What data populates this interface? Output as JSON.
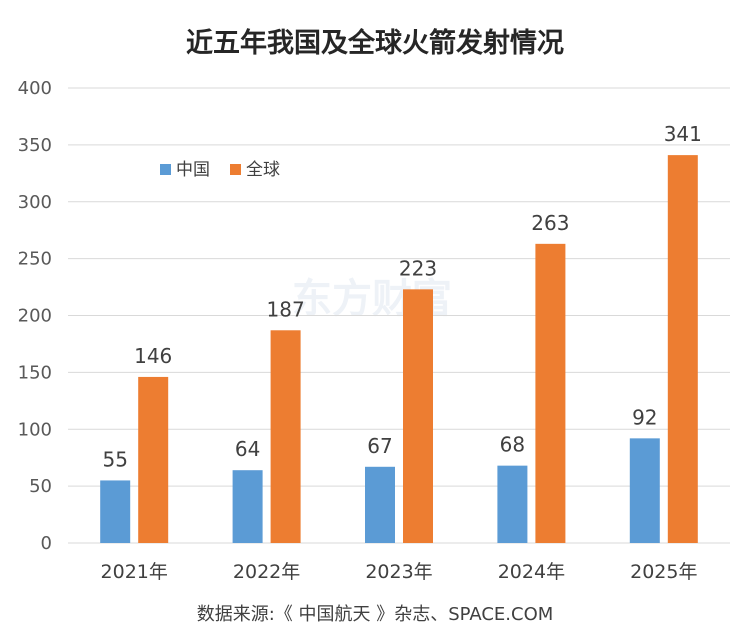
{
  "chart_data": {
    "type": "bar",
    "title": "近五年我国及全球火箭发射情况",
    "categories": [
      "2021年",
      "2022年",
      "2023年",
      "2024年",
      "2025年"
    ],
    "series": [
      {
        "name": "中国",
        "values": [
          55,
          64,
          67,
          68,
          92
        ],
        "color": "#5b9bd5"
      },
      {
        "name": "全球",
        "values": [
          146,
          187,
          223,
          263,
          341
        ],
        "color": "#ed7d31"
      }
    ],
    "ylim": [
      0,
      400
    ],
    "yticks": [
      0,
      50,
      100,
      150,
      200,
      250,
      300,
      350,
      400
    ],
    "xlabel": "",
    "ylabel": "",
    "grid": true,
    "legend_position": "top-left",
    "source": "数据来源:《 中国航天 》杂志、SPACE.COM"
  },
  "watermark": "东方财富"
}
